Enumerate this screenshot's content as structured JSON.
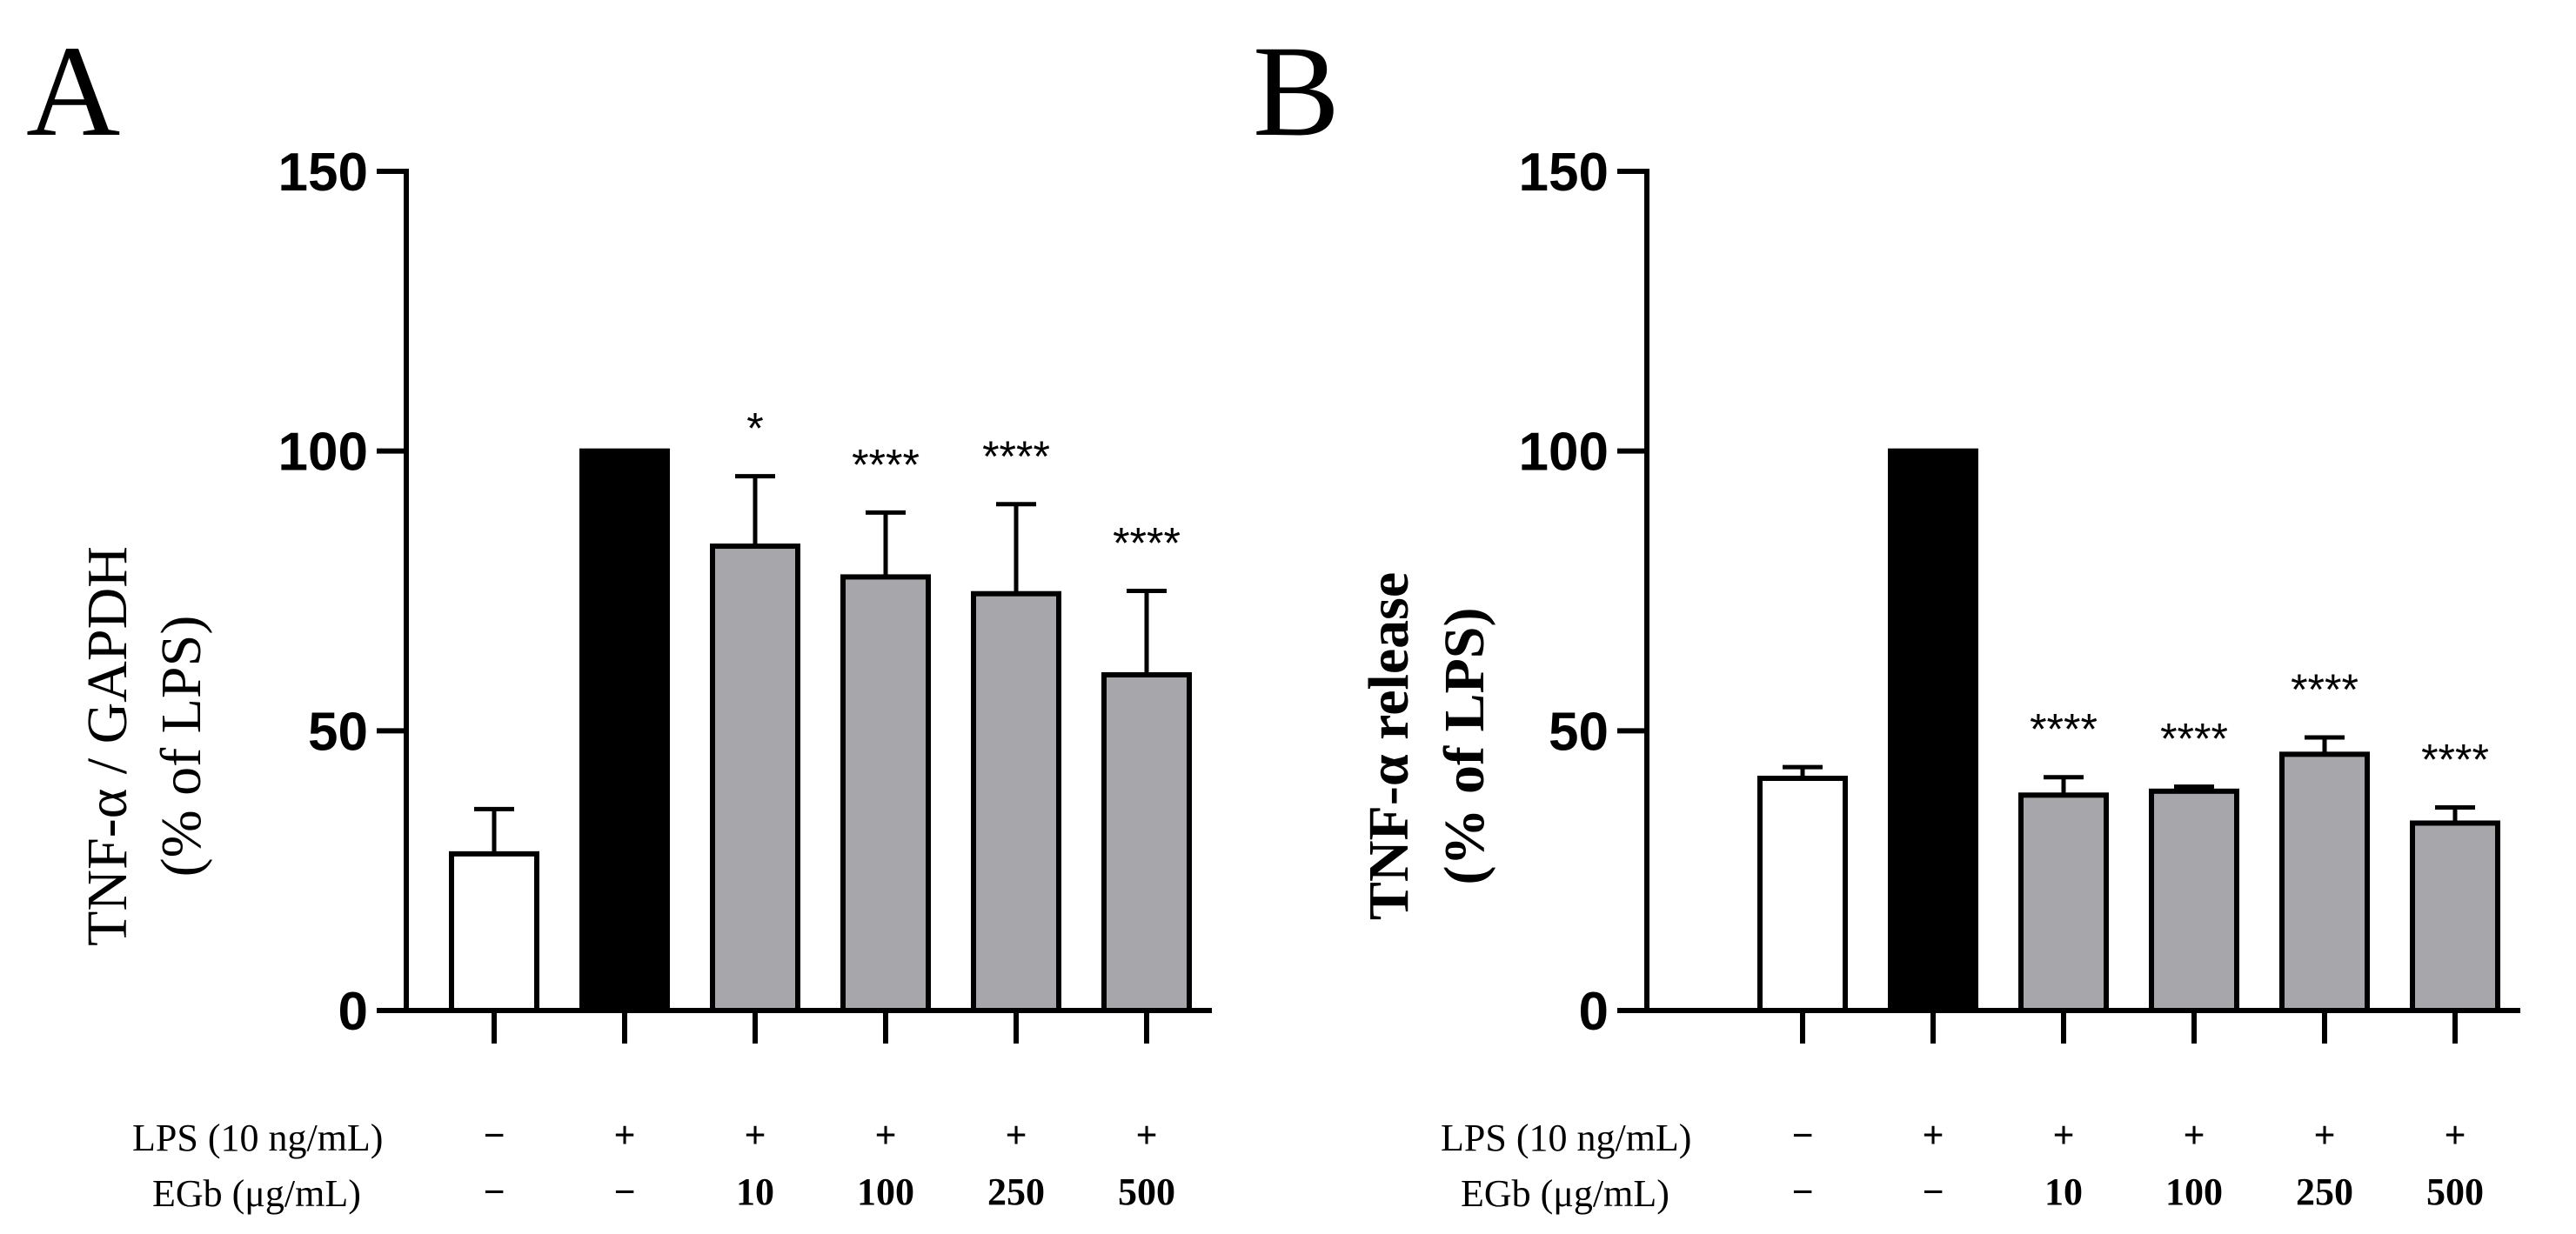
{
  "colors": {
    "background": "#ffffff",
    "axis": "#000000",
    "bar_control": "#ffffff",
    "bar_lps": "#000000",
    "bar_egb": "#a7a6ab"
  },
  "treatment_table": {
    "lps_label": "LPS (10 ng/mL)",
    "egb_label": "EGb (μg/mL)",
    "lps_values": [
      "−",
      "+",
      "+",
      "+",
      "+",
      "+"
    ],
    "egb_values": [
      "−",
      "−",
      "10",
      "100",
      "250",
      "500"
    ]
  },
  "chart_data": [
    {
      "panel_label": "A",
      "type": "bar",
      "ylabel_line1": "TNF-α / GAPDH",
      "ylabel_line2": "(% of LPS)",
      "ylim": [
        0,
        150
      ],
      "yticks": [
        0,
        50,
        100,
        150
      ],
      "ytick_labels": [
        "0",
        "50",
        "100",
        "150"
      ],
      "categories": [
        "Control",
        "LPS",
        "LPS + EGb 10",
        "LPS + EGb 100",
        "LPS + EGb 250",
        "LPS + EGb 500"
      ],
      "values": [
        28,
        100,
        83,
        77.5,
        74.5,
        60
      ],
      "errors": [
        8,
        0,
        12.5,
        11.5,
        16,
        15
      ],
      "fill_keys": [
        "bar_control",
        "bar_lps",
        "bar_egb",
        "bar_egb",
        "bar_egb",
        "bar_egb"
      ],
      "significance": [
        "",
        "",
        "*",
        "****",
        "****",
        "****"
      ]
    },
    {
      "panel_label": "B",
      "type": "bar",
      "ylabel_line1": "TNF-α release",
      "ylabel_line2": "(% of LPS)",
      "ylim": [
        0,
        150
      ],
      "yticks": [
        0,
        50,
        100,
        150
      ],
      "ytick_labels": [
        "0",
        "50",
        "100",
        "150"
      ],
      "categories": [
        "Control",
        "LPS",
        "LPS + EGb 10",
        "LPS + EGb 100",
        "LPS + EGb 250",
        "LPS + EGb 500"
      ],
      "values": [
        41.5,
        100,
        38.5,
        39.2,
        45.8,
        33.5
      ],
      "errors": [
        2,
        0,
        3.2,
        0.8,
        3,
        2.8
      ],
      "fill_keys": [
        "bar_control",
        "bar_lps",
        "bar_egb",
        "bar_egb",
        "bar_egb",
        "bar_egb"
      ],
      "significance": [
        "",
        "",
        "****",
        "****",
        "****",
        "****"
      ]
    }
  ]
}
